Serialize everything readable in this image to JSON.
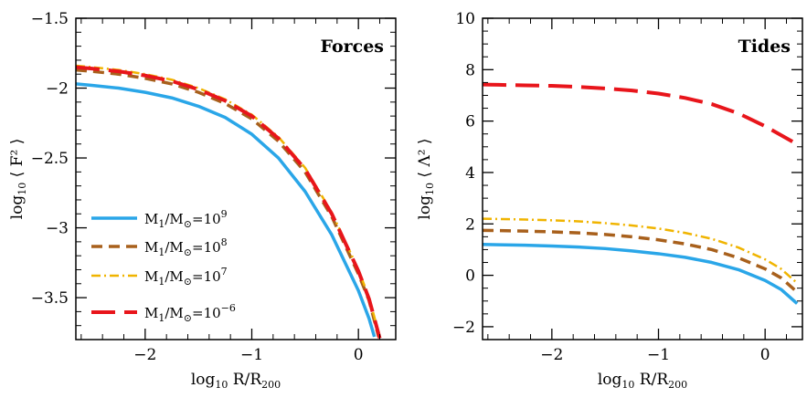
{
  "chart_data": [
    {
      "type": "line",
      "title": "Forces",
      "xlabel": "log10 R/R200",
      "ylabel": "log10 ⟨ F² ⟩",
      "xlim": [
        -2.65,
        0.35
      ],
      "ylim": [
        -3.8,
        -1.5
      ],
      "xticks": [
        -2,
        -1,
        0
      ],
      "xtick_labels": [
        "−2",
        "−1",
        "0"
      ],
      "yticks": [
        -1.5,
        -2,
        -2.5,
        -3,
        -3.5
      ],
      "ytick_labels": [
        "−1.5",
        "−2",
        "−2.5",
        "−3",
        "−3.5"
      ],
      "legend_position": "lower-left",
      "series": [
        {
          "name": "M1/M⊙=10^9",
          "color": "#2aa6e8",
          "dash": "solid",
          "width": 3.5,
          "x": [
            -2.65,
            -2.5,
            -2.25,
            -2.0,
            -1.75,
            -1.5,
            -1.25,
            -1.0,
            -0.75,
            -0.5,
            -0.25,
            0.0,
            0.1,
            0.15
          ],
          "y": [
            -1.97,
            -1.98,
            -2.0,
            -2.03,
            -2.07,
            -2.13,
            -2.21,
            -2.33,
            -2.5,
            -2.74,
            -3.05,
            -3.45,
            -3.65,
            -3.78
          ]
        },
        {
          "name": "M1/M⊙=10^8",
          "color": "#a8601c",
          "dash": "12,7",
          "width": 3.5,
          "x": [
            -2.65,
            -2.5,
            -2.25,
            -2.0,
            -1.75,
            -1.5,
            -1.25,
            -1.0,
            -0.75,
            -0.5,
            -0.25,
            0.0,
            0.1,
            0.19
          ],
          "y": [
            -1.87,
            -1.88,
            -1.9,
            -1.93,
            -1.97,
            -2.03,
            -2.11,
            -2.22,
            -2.38,
            -2.6,
            -2.92,
            -3.33,
            -3.52,
            -3.78
          ]
        },
        {
          "name": "M1/M⊙=10^7",
          "color": "#f0b400",
          "dash": "10,4,2,4",
          "width": 2.5,
          "x": [
            -2.65,
            -2.5,
            -2.25,
            -2.0,
            -1.75,
            -1.5,
            -1.25,
            -1.0,
            -0.75,
            -0.5,
            -0.25,
            0.0,
            0.1,
            0.2
          ],
          "y": [
            -1.84,
            -1.85,
            -1.87,
            -1.9,
            -1.94,
            -2.0,
            -2.08,
            -2.19,
            -2.35,
            -2.57,
            -2.89,
            -3.3,
            -3.5,
            -3.78
          ]
        },
        {
          "name": "M1/M⊙=10^-6",
          "color": "#e8151b",
          "dash": "26,10",
          "width": 4,
          "x": [
            -2.65,
            -2.5,
            -2.25,
            -2.0,
            -1.75,
            -1.5,
            -1.25,
            -1.0,
            -0.75,
            -0.5,
            -0.25,
            0.0,
            0.1,
            0.2
          ],
          "y": [
            -1.85,
            -1.86,
            -1.88,
            -1.91,
            -1.95,
            -2.01,
            -2.09,
            -2.2,
            -2.36,
            -2.58,
            -2.9,
            -3.31,
            -3.51,
            -3.79
          ]
        }
      ]
    },
    {
      "type": "line",
      "title": "Tides",
      "xlabel": "log10 R/R200",
      "ylabel": "log10 ⟨ Λ² ⟩",
      "xlim": [
        -2.65,
        0.35
      ],
      "ylim": [
        -2.5,
        10
      ],
      "xticks": [
        -2,
        -1,
        0
      ],
      "xtick_labels": [
        "−2",
        "−1",
        "0"
      ],
      "yticks": [
        10,
        8,
        6,
        4,
        2,
        0,
        -2
      ],
      "ytick_labels": [
        "10",
        "8",
        "6",
        "4",
        "2",
        "0",
        "−2"
      ],
      "series": [
        {
          "name": "M1/M⊙=10^9",
          "color": "#2aa6e8",
          "dash": "solid",
          "width": 3.5,
          "x": [
            -2.65,
            -2.5,
            -2.25,
            -2.0,
            -1.75,
            -1.5,
            -1.25,
            -1.0,
            -0.75,
            -0.5,
            -0.25,
            0.0,
            0.15,
            0.3
          ],
          "y": [
            1.2,
            1.19,
            1.17,
            1.14,
            1.1,
            1.04,
            0.95,
            0.84,
            0.7,
            0.5,
            0.22,
            -0.2,
            -0.55,
            -1.1
          ]
        },
        {
          "name": "M1/M⊙=10^8",
          "color": "#a8601c",
          "dash": "12,7",
          "width": 3.5,
          "x": [
            -2.65,
            -2.5,
            -2.25,
            -2.0,
            -1.75,
            -1.5,
            -1.25,
            -1.0,
            -0.75,
            -0.5,
            -0.25,
            0.0,
            0.15,
            0.3
          ],
          "y": [
            1.75,
            1.74,
            1.72,
            1.69,
            1.65,
            1.59,
            1.5,
            1.38,
            1.22,
            1.0,
            0.68,
            0.25,
            -0.1,
            -0.65
          ]
        },
        {
          "name": "M1/M⊙=10^7",
          "color": "#f0b400",
          "dash": "10,4,2,4",
          "width": 2.5,
          "x": [
            -2.65,
            -2.5,
            -2.25,
            -2.0,
            -1.75,
            -1.5,
            -1.25,
            -1.0,
            -0.75,
            -0.5,
            -0.25,
            0.0,
            0.15,
            0.3
          ],
          "y": [
            2.2,
            2.19,
            2.17,
            2.14,
            2.1,
            2.03,
            1.94,
            1.82,
            1.65,
            1.42,
            1.08,
            0.62,
            0.25,
            -0.3
          ]
        },
        {
          "name": "M1/M⊙=10^-6",
          "color": "#e8151b",
          "dash": "26,10",
          "width": 4,
          "x": [
            -2.65,
            -2.5,
            -2.25,
            -2.0,
            -1.75,
            -1.5,
            -1.25,
            -1.0,
            -0.75,
            -0.5,
            -0.25,
            0.0,
            0.15,
            0.3
          ],
          "y": [
            7.42,
            7.41,
            7.39,
            7.37,
            7.33,
            7.27,
            7.19,
            7.07,
            6.9,
            6.66,
            6.3,
            5.8,
            5.45,
            5.1
          ]
        }
      ]
    }
  ],
  "legend": [
    {
      "base": "M",
      "sub": "1",
      "mid": "/M",
      "sun": "⊙",
      "eq": "=10",
      "exp": "9"
    },
    {
      "base": "M",
      "sub": "1",
      "mid": "/M",
      "sun": "⊙",
      "eq": "=10",
      "exp": "8"
    },
    {
      "base": "M",
      "sub": "1",
      "mid": "/M",
      "sun": "⊙",
      "eq": "=10",
      "exp": "7"
    },
    {
      "base": "M",
      "sub": "1",
      "mid": "/M",
      "sun": "⊙",
      "eq": "=10",
      "exp": "−6"
    }
  ],
  "axis_titles": {
    "x_main": "log",
    "x_sub": "10",
    "x_rest": " R/R",
    "x_rsub": "200",
    "y_main": "log",
    "y_sub": "10",
    "left_y_rest": " ⟨ F² ⟩",
    "right_y_rest": " ⟨ Λ² ⟩"
  }
}
